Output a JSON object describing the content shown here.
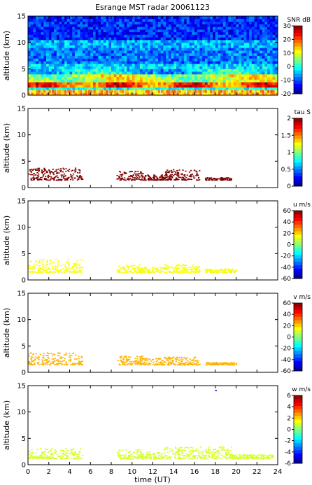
{
  "chart_data": {
    "title": "Esrange MST radar 20061123",
    "xlabel": "time (UT)",
    "x_ticks": [
      0,
      2,
      4,
      6,
      8,
      10,
      12,
      14,
      16,
      18,
      20,
      22,
      24
    ],
    "xlim": [
      0,
      24
    ],
    "panels": [
      {
        "id": "snr",
        "type": "heatmap",
        "ylabel": "altitude (km)",
        "ylim": [
          0,
          15
        ],
        "y_ticks": [
          0,
          5,
          10,
          15
        ],
        "colorbar": {
          "label": "SNR dB",
          "range": [
            -20,
            30
          ],
          "ticks": [
            -20,
            -10,
            0,
            10,
            20,
            30
          ]
        },
        "layers": [
          {
            "alt": [
              0.0,
              0.8
            ],
            "snr": 15
          },
          {
            "alt": [
              0.8,
              1.3
            ],
            "snr": 0
          },
          {
            "alt": [
              1.3,
              2.6
            ],
            "snr": 20
          },
          {
            "alt": [
              2.6,
              4.0
            ],
            "snr": 8
          },
          {
            "alt": [
              4.0,
              6.0
            ],
            "snr": -3
          },
          {
            "alt": [
              6.0,
              9.0
            ],
            "snr": -8
          },
          {
            "alt": [
              9.0,
              10.5
            ],
            "snr": -5
          },
          {
            "alt": [
              10.5,
              15.0
            ],
            "snr": -12
          }
        ]
      },
      {
        "id": "tau",
        "type": "scatter",
        "ylabel": "altitude (km)",
        "ylim": [
          0,
          15
        ],
        "y_ticks": [
          0,
          5,
          10,
          15
        ],
        "colorbar": {
          "label": "tau S",
          "range": [
            0,
            2
          ],
          "ticks": [
            0,
            0.5,
            1,
            1.5,
            2
          ]
        },
        "value": 2.0,
        "segments": [
          {
            "t": [
              0.0,
              5.2
            ],
            "alt": [
              1.5,
              3.8
            ]
          },
          {
            "t": [
              8.5,
              11.0
            ],
            "alt": [
              1.5,
              3.2
            ]
          },
          {
            "t": [
              11.0,
              13.0
            ],
            "alt": [
              1.5,
              2.5
            ]
          },
          {
            "t": [
              13.0,
              16.5
            ],
            "alt": [
              1.5,
              3.5
            ]
          },
          {
            "t": [
              17.0,
              19.5
            ],
            "alt": [
              1.5,
              2.0
            ]
          }
        ]
      },
      {
        "id": "u",
        "type": "scatter",
        "ylabel": "altitude (km)",
        "ylim": [
          0,
          15
        ],
        "y_ticks": [
          0,
          5,
          10,
          15
        ],
        "colorbar": {
          "label": "u m/s",
          "range": [
            -60,
            60
          ],
          "ticks": [
            -60,
            -40,
            -20,
            0,
            20,
            40,
            60
          ]
        },
        "value": 14,
        "segments": [
          {
            "t": [
              0.0,
              5.2
            ],
            "alt": [
              1.5,
              4.0
            ]
          },
          {
            "t": [
              8.5,
              11.0
            ],
            "alt": [
              1.5,
              3.0
            ]
          },
          {
            "t": [
              11.0,
              13.0
            ],
            "alt": [
              1.5,
              2.5
            ]
          },
          {
            "t": [
              13.0,
              16.5
            ],
            "alt": [
              1.5,
              3.0
            ]
          },
          {
            "t": [
              17.0,
              20.0
            ],
            "alt": [
              1.5,
              2.2
            ]
          }
        ]
      },
      {
        "id": "v",
        "type": "scatter",
        "ylabel": "altitude (km)",
        "ylim": [
          0,
          15
        ],
        "y_ticks": [
          0,
          5,
          10,
          15
        ],
        "colorbar": {
          "label": "v m/s",
          "range": [
            -60,
            60
          ],
          "ticks": [
            -60,
            -40,
            -20,
            0,
            20,
            40,
            60
          ]
        },
        "value": 24,
        "segments": [
          {
            "t": [
              0.0,
              5.2
            ],
            "alt": [
              1.5,
              3.8
            ]
          },
          {
            "t": [
              8.5,
              11.0
            ],
            "alt": [
              1.5,
              3.2
            ]
          },
          {
            "t": [
              11.0,
              13.0
            ],
            "alt": [
              1.5,
              2.8
            ]
          },
          {
            "t": [
              13.0,
              16.5
            ],
            "alt": [
              1.5,
              3.0
            ]
          },
          {
            "t": [
              17.0,
              20.0
            ],
            "alt": [
              1.5,
              2.0
            ]
          }
        ]
      },
      {
        "id": "w",
        "type": "scatter",
        "ylabel": "altitude (km)",
        "ylim": [
          0,
          15
        ],
        "y_ticks": [
          0,
          5,
          10,
          15
        ],
        "colorbar": {
          "label": "w m/s",
          "range": [
            -6,
            6
          ],
          "ticks": [
            -6,
            -4,
            -2,
            0,
            2,
            4,
            6
          ]
        },
        "value": 1.0,
        "segments": [
          {
            "t": [
              0.0,
              5.2
            ],
            "alt": [
              1.2,
              3.2
            ]
          },
          {
            "t": [
              8.5,
              11.0
            ],
            "alt": [
              1.2,
              3.0
            ]
          },
          {
            "t": [
              11.0,
              13.0
            ],
            "alt": [
              1.2,
              2.5
            ]
          },
          {
            "t": [
              13.0,
              19.5
            ],
            "alt": [
              1.2,
              3.5
            ]
          },
          {
            "t": [
              19.5,
              23.5
            ],
            "alt": [
              1.2,
              2.0
            ]
          }
        ],
        "outliers": [
          {
            "t": 18.0,
            "alt": 14.2,
            "value": -5
          }
        ]
      }
    ]
  }
}
